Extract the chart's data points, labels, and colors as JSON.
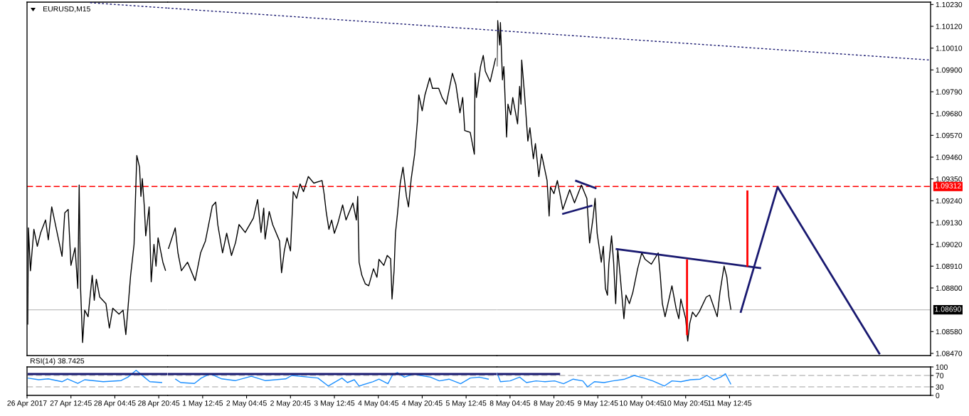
{
  "chart_data": [
    {
      "type": "line",
      "title": "EURUSD,M15",
      "series": [
        {
          "color": "#000000",
          "x": [
            "2017-04-26T21:00",
            "2017-04-26T21:15",
            "2017-04-26T22:00",
            "2017-04-26T23:15",
            "2017-04-27T00:30",
            "2017-04-27T01:45",
            "2017-04-27T03:30",
            "2017-04-27T04:30",
            "2017-04-27T05:45",
            "2017-04-27T07:15",
            "2017-04-27T09:30",
            "2017-04-27T10:30",
            "2017-04-27T11:45",
            "2017-04-27T12:45",
            "2017-04-27T14:15",
            "2017-04-27T15:15",
            "2017-04-27T15:45",
            "2017-04-27T16:15",
            "2017-04-27T17:00",
            "2017-04-27T17:45",
            "2017-04-27T19:00",
            "2017-04-27T20:30",
            "2017-04-27T21:15",
            "2017-04-27T22:00",
            "2017-04-27T23:15",
            "2017-04-28T01:30",
            "2017-04-28T02:45",
            "2017-04-28T04:00",
            "2017-04-28T06:15",
            "2017-04-28T07:45",
            "2017-04-28T08:45",
            "2017-04-28T10:30",
            "2017-04-28T11:45",
            "2017-04-28T12:45",
            "2017-04-28T13:45",
            "2017-04-28T14:15",
            "2017-04-28T14:45",
            "2017-04-28T15:30",
            "2017-04-28T16:00",
            "2017-04-28T17:15",
            "2017-04-28T18:00",
            "2017-04-28T19:00",
            "2017-04-28T19:45",
            "2017-04-28T20:30",
            "2017-04-28T22:15",
            "2017-04-28T23:15"
          ],
          "values": [
            1.08615,
            1.09103,
            1.08887,
            1.09096,
            1.0901,
            1.0908,
            1.09143,
            1.09043,
            1.09209,
            1.0911,
            1.0896,
            1.09179,
            1.09196,
            1.08914,
            1.09003,
            1.08798,
            1.09319,
            1.08801,
            1.08525,
            1.08688,
            1.08655,
            1.08864,
            1.08738,
            1.08844,
            1.08754,
            1.08721,
            1.08598,
            1.08698,
            1.08668,
            1.08688,
            1.08565,
            1.08864,
            1.0902,
            1.09468,
            1.09409,
            1.09262,
            1.09352,
            1.09209,
            1.09063,
            1.09209,
            1.08831,
            1.0902,
            1.0891,
            1.09053,
            1.0893,
            1.08887
          ]
        },
        {
          "color": "#191970",
          "line_style": "dotted",
          "x": [
            "2017-04-27T19:45",
            "2017-04-29T00:00"
          ],
          "values": [
            1.10239,
            1.10212
          ]
        }
      ],
      "xlim": [
        "2017-04-26T20:45",
        "2017-04-29T00:00"
      ],
      "ylim": [
        1.08459,
        1.10242
      ],
      "ref_lines": [
        {
          "axis": "y",
          "value": 1.09312,
          "color": "#ff0000",
          "line_style": "dashed"
        },
        {
          "axis": "y",
          "value": 1.0869,
          "color": "#c0c0c0",
          "line_style": "solid"
        }
      ],
      "tick_labels": false
    },
    {
      "type": "line",
      "series": [
        {
          "color": "#000000",
          "x": [
            "2017-05-01T00:15",
            "2017-05-01T02:45",
            "2017-05-01T03:45",
            "2017-05-01T05:00",
            "2017-05-01T07:15",
            "2017-05-01T10:00",
            "2017-05-01T12:00",
            "2017-05-01T13:45",
            "2017-05-01T16:15",
            "2017-05-01T17:30",
            "2017-05-01T18:15",
            "2017-05-01T20:00",
            "2017-05-01T21:30",
            "2017-05-01T23:15",
            "2017-05-02T00:45",
            "2017-05-02T02:00",
            "2017-05-02T04:15",
            "2017-05-02T07:15",
            "2017-05-02T08:45",
            "2017-05-02T10:00",
            "2017-05-02T11:00",
            "2017-05-02T11:30",
            "2017-05-02T13:00",
            "2017-05-02T14:15",
            "2017-05-02T16:45",
            "2017-05-02T17:30",
            "2017-05-02T18:30",
            "2017-05-02T19:30",
            "2017-05-02T20:45",
            "2017-05-02T21:45",
            "2017-05-02T23:00",
            "2017-05-03T00:15",
            "2017-05-03T01:30",
            "2017-05-03T03:15",
            "2017-05-03T05:15",
            "2017-05-03T08:15",
            "2017-05-03T09:00",
            "2017-05-03T09:45",
            "2017-05-03T10:45",
            "2017-05-03T11:45",
            "2017-05-03T12:45",
            "2017-05-03T14:00",
            "2017-05-03T15:45",
            "2017-05-03T17:00",
            "2017-05-03T19:30",
            "2017-05-03T20:45",
            "2017-05-03T21:15",
            "2017-05-03T21:45",
            "2017-05-03T22:45",
            "2017-05-04T00:00",
            "2017-05-04T01:15",
            "2017-05-04T03:00",
            "2017-05-04T04:15",
            "2017-05-04T05:00",
            "2017-05-04T06:45",
            "2017-05-04T08:00",
            "2017-05-04T09:15",
            "2017-05-04T09:45",
            "2017-05-04T10:30",
            "2017-05-04T11:00",
            "2017-05-04T11:45",
            "2017-05-04T12:45",
            "2017-05-04T13:45",
            "2017-05-04T15:00",
            "2017-05-04T15:45",
            "2017-05-04T16:45",
            "2017-05-04T18:00",
            "2017-05-04T19:00",
            "2017-05-04T19:30",
            "2017-05-04T20:45",
            "2017-05-04T21:45",
            "2017-05-04T23:30",
            "2017-05-05T00:30",
            "2017-05-05T02:45",
            "2017-05-05T04:00",
            "2017-05-05T05:30",
            "2017-05-05T07:45",
            "2017-05-05T09:00",
            "2017-05-05T10:30",
            "2017-05-05T11:30",
            "2017-05-05T12:15",
            "2017-05-05T14:15",
            "2017-05-05T15:45",
            "2017-05-05T16:00",
            "2017-05-05T16:30",
            "2017-05-05T18:00",
            "2017-05-05T19:00",
            "2017-05-05T19:45",
            "2017-05-05T21:30",
            "2017-05-05T23:30"
          ],
          "values": [
            1.08997,
            1.09103,
            1.08977,
            1.08887,
            1.0893,
            1.08837,
            1.08977,
            1.09037,
            1.09213,
            1.09233,
            1.0912,
            1.08977,
            1.09076,
            1.08964,
            1.0903,
            1.0912,
            1.0908,
            1.09153,
            1.09246,
            1.0908,
            1.09203,
            1.09047,
            1.09186,
            1.0912,
            1.09037,
            1.08877,
            1.08987,
            1.09053,
            1.08987,
            1.09286,
            1.09252,
            1.09325,
            1.09286,
            1.09362,
            1.09329,
            1.09342,
            1.09276,
            1.09186,
            1.09096,
            1.09143,
            1.09076,
            1.09126,
            1.09219,
            1.09143,
            1.09229,
            1.09143,
            1.09262,
            1.0893,
            1.08864,
            1.08821,
            1.08811,
            1.08897,
            1.08854,
            1.08944,
            1.08914,
            1.08964,
            1.08947,
            1.08744,
            1.08887,
            1.09076,
            1.09176,
            1.09329,
            1.09409,
            1.09262,
            1.09209,
            1.09352,
            1.09475,
            1.09641,
            1.09774,
            1.09694,
            1.09774,
            1.0986,
            1.09807,
            1.09807,
            1.09761,
            1.09727,
            1.09883,
            1.09827,
            1.09684,
            1.09761,
            1.09594,
            1.09585,
            1.09475,
            1.09883,
            1.09761,
            1.09917,
            1.09973,
            1.09893,
            1.0984,
            1.0996
          ]
        },
        {
          "color": "#191970",
          "line_style": "dotted",
          "x": [
            "2017-05-01T00:00",
            "2017-05-06T00:00"
          ],
          "values": [
            1.10212,
            1.10099
          ]
        }
      ],
      "xlim": [
        "2017-05-01T00:00",
        "2017-05-06T00:00"
      ],
      "ylim": [
        1.08459,
        1.10242
      ],
      "ref_lines": [
        {
          "axis": "y",
          "value": 1.09312,
          "color": "#ff0000",
          "line_style": "dashed"
        },
        {
          "axis": "y",
          "value": 1.0869,
          "color": "#c0c0c0",
          "line_style": "solid"
        }
      ],
      "tick_labels": false
    },
    {
      "type": "line",
      "series": [
        {
          "color": "#000000",
          "x": [
            "2017-05-08T00:00",
            "2017-05-08T00:15",
            "2017-05-08T01:00",
            "2017-05-08T01:15",
            "2017-05-08T02:00",
            "2017-05-08T02:30",
            "2017-05-08T03:30",
            "2017-05-08T04:00",
            "2017-05-08T05:00",
            "2017-05-08T05:45",
            "2017-05-08T07:30",
            "2017-05-08T08:15",
            "2017-05-08T08:45",
            "2017-05-08T09:00",
            "2017-05-08T10:00",
            "2017-05-08T11:15",
            "2017-05-08T12:00",
            "2017-05-08T13:15",
            "2017-05-08T14:00",
            "2017-05-08T15:15",
            "2017-05-08T16:15",
            "2017-05-08T18:15",
            "2017-05-08T19:00",
            "2017-05-08T19:30",
            "2017-05-08T20:45",
            "2017-05-08T22:00",
            "2017-05-09T00:00",
            "2017-05-09T02:30",
            "2017-05-09T04:15",
            "2017-05-09T06:45",
            "2017-05-09T08:45",
            "2017-05-09T09:45",
            "2017-05-09T11:00",
            "2017-05-09T11:45",
            "2017-05-09T12:30",
            "2017-05-09T14:00",
            "2017-05-09T14:45",
            "2017-05-09T15:30",
            "2017-05-09T16:15",
            "2017-05-09T16:45",
            "2017-05-09T17:45",
            "2017-05-09T18:30",
            "2017-05-09T19:15",
            "2017-05-09T20:00",
            "2017-05-09T21:00",
            "2017-05-09T22:15",
            "2017-05-09T23:00",
            "2017-05-10T00:15",
            "2017-05-10T01:30",
            "2017-05-10T03:15",
            "2017-05-10T04:45",
            "2017-05-10T06:00",
            "2017-05-10T08:15",
            "2017-05-10T10:45",
            "2017-05-10T11:30",
            "2017-05-10T12:15",
            "2017-05-10T13:15",
            "2017-05-10T15:45",
            "2017-05-10T17:15",
            "2017-05-10T18:15",
            "2017-05-10T19:00",
            "2017-05-10T20:45",
            "2017-05-10T21:30",
            "2017-05-10T22:15",
            "2017-05-10T23:15",
            "2017-05-11T00:30",
            "2017-05-11T01:45",
            "2017-05-11T04:15",
            "2017-05-11T05:30",
            "2017-05-11T08:15",
            "2017-05-11T09:15",
            "2017-05-11T10:45",
            "2017-05-11T11:45",
            "2017-05-11T12:30",
            "2017-05-11T13:15"
          ],
          "values": [
            1.09917,
            1.10149,
            1.10026,
            1.10139,
            1.0985,
            1.09917,
            1.09561,
            1.09727,
            1.09674,
            1.09761,
            1.09628,
            1.09817,
            1.09727,
            1.0995,
            1.09784,
            1.09541,
            1.09608,
            1.09452,
            1.09528,
            1.09362,
            1.09475,
            1.09342,
            1.09163,
            1.09309,
            1.09276,
            1.09342,
            1.09196,
            1.09296,
            1.09229,
            1.09319,
            1.09252,
            1.09027,
            1.09153,
            1.09252,
            1.09076,
            1.0893,
            1.0901,
            1.08798,
            1.08764,
            1.0892,
            1.09063,
            1.0893,
            1.08721,
            1.08997,
            1.08844,
            1.08645,
            1.08764,
            1.08721,
            1.08778,
            1.08897,
            1.08977,
            1.08944,
            1.0892,
            1.08977,
            1.08864,
            1.08721,
            1.08655,
            1.08811,
            1.08698,
            1.08645,
            1.08744,
            1.08645,
            1.08532,
            1.08622,
            1.08678,
            1.08655,
            1.08681,
            1.08754,
            1.08764,
            1.08655,
            1.08778,
            1.0891,
            1.08854,
            1.08754,
            1.0869
          ]
        },
        {
          "color": "#191970",
          "line_style": "dotted",
          "x": [
            "2017-05-08T00:00",
            "2017-05-14T13:45"
          ],
          "values": [
            1.10099,
            1.0995
          ]
        },
        {
          "color": "#191970",
          "x": [
            "2017-05-09T04:30",
            "2017-05-09T12:15"
          ],
          "values": [
            1.09342,
            1.09302
          ]
        },
        {
          "color": "#191970",
          "x": [
            "2017-05-08T23:45",
            "2017-05-09T10:45"
          ],
          "values": [
            1.09173,
            1.09216
          ]
        },
        {
          "color": "#191970",
          "x": [
            "2017-05-09T19:15",
            "2017-05-12T00:15"
          ],
          "values": [
            1.08997,
            1.089
          ]
        },
        {
          "color": "#191970",
          "x": [
            "2017-05-11T16:45",
            "2017-05-12T06:15",
            "2017-05-13T19:30"
          ],
          "values": [
            1.08675,
            1.09309,
            1.08465
          ]
        },
        {
          "color": "#ff0000",
          "x": [
            "2017-05-10T21:15",
            "2017-05-10T21:15"
          ],
          "values": [
            1.08944,
            1.08562
          ]
        },
        {
          "color": "#ff0000",
          "x": [
            "2017-05-11T19:15",
            "2017-05-11T19:15"
          ],
          "values": [
            1.09292,
            1.08907
          ]
        }
      ],
      "xlim": [
        "2017-05-08T00:00",
        "2017-05-14T14:00"
      ],
      "ylim": [
        1.08459,
        1.10242
      ],
      "yticks": [
        {
          "value": 1.0847,
          "label": "1.08470"
        },
        {
          "value": 1.0858,
          "label": "1.08580"
        },
        {
          "value": 1.088,
          "label": "1.08800"
        },
        {
          "value": 1.0891,
          "label": "1.08910"
        },
        {
          "value": 1.0902,
          "label": "1.09020"
        },
        {
          "value": 1.0913,
          "label": "1.09130"
        },
        {
          "value": 1.0924,
          "label": "1.09240"
        },
        {
          "value": 1.0935,
          "label": "1.09350"
        },
        {
          "value": 1.0946,
          "label": "1.09460"
        },
        {
          "value": 1.0957,
          "label": "1.09570"
        },
        {
          "value": 1.0968,
          "label": "1.09680"
        },
        {
          "value": 1.0979,
          "label": "1.09790"
        },
        {
          "value": 1.099,
          "label": "1.09900"
        },
        {
          "value": 1.1001,
          "label": "1.10010"
        },
        {
          "value": 1.1012,
          "label": "1.10120"
        },
        {
          "value": 1.1023,
          "label": "1.10230"
        }
      ],
      "ref_lines": [
        {
          "axis": "y",
          "value": 1.09312,
          "label": "1.09312",
          "color": "#ff0000",
          "line_style": "dashed"
        },
        {
          "axis": "y",
          "value": 1.0869,
          "label": "1.08690",
          "color": "#c0c0c0",
          "line_style": "solid"
        }
      ],
      "tick_labels": "y"
    },
    {
      "type": "line",
      "title": "RSI(14) 38.7425",
      "series": [
        {
          "color": "#1e90ff",
          "x": [
            "2017-04-26T21:00",
            "2017-04-27T01:00",
            "2017-04-27T04:30",
            "2017-04-27T09:30",
            "2017-04-27T11:30",
            "2017-04-27T15:15",
            "2017-04-27T17:45",
            "2017-04-28T00:30",
            "2017-04-28T07:00",
            "2017-04-28T09:30",
            "2017-04-28T12:30",
            "2017-04-28T15:30",
            "2017-04-28T17:30",
            "2017-04-28T22:00"
          ],
          "values": [
            61,
            55,
            58,
            48,
            58,
            42,
            55,
            48,
            52,
            64,
            88,
            64,
            48,
            45
          ]
        },
        {
          "color": "#191970",
          "x": [
            "2017-04-26T21:00",
            "2017-04-29T00:00"
          ],
          "values": [
            75,
            75
          ]
        }
      ],
      "xlim": [
        "2017-04-26T20:45",
        "2017-04-29T00:00"
      ],
      "xticks": [
        {
          "value": "2017-04-26T20:45",
          "label": "26 Apr 2017"
        },
        {
          "value": "2017-04-27T12:45",
          "label": "27 Apr 12:45"
        },
        {
          "value": "2017-04-28T04:45",
          "label": "28 Apr 04:45"
        },
        {
          "value": "2017-04-28T20:45",
          "label": "28 Apr 20:45"
        }
      ],
      "ylim": [
        0,
        100
      ],
      "ref_lines": [
        {
          "axis": "y",
          "value": 70,
          "color": "#c0c0c0",
          "line_style": "dashed"
        },
        {
          "axis": "y",
          "value": 30,
          "color": "#c0c0c0",
          "line_style": "dashed"
        }
      ],
      "tick_labels": "x"
    },
    {
      "type": "line",
      "series": [
        {
          "color": "#1e90ff",
          "x": [
            "2017-05-01T02:45",
            "2017-05-01T04:45",
            "2017-05-01T09:45",
            "2017-05-01T12:15",
            "2017-05-01T15:30",
            "2017-05-01T19:45",
            "2017-05-02T00:45",
            "2017-05-02T06:30",
            "2017-05-02T11:30",
            "2017-05-02T19:00",
            "2017-05-02T21:15",
            "2017-05-03T03:30",
            "2017-05-03T06:45",
            "2017-05-03T10:30",
            "2017-05-03T15:30",
            "2017-05-03T17:30",
            "2017-05-03T20:00",
            "2017-05-03T21:45",
            "2017-05-04T02:45",
            "2017-05-04T05:00",
            "2017-05-04T08:15",
            "2017-05-04T10:00",
            "2017-05-04T11:45",
            "2017-05-04T14:15",
            "2017-05-04T17:45",
            "2017-05-04T20:15",
            "2017-05-04T23:45",
            "2017-05-05T03:00",
            "2017-05-05T06:30",
            "2017-05-05T10:45",
            "2017-05-05T14:15",
            "2017-05-05T17:30",
            "2017-05-05T21:00"
          ],
          "values": [
            58,
            45,
            42,
            61,
            76,
            58,
            52,
            67,
            52,
            58,
            70,
            64,
            61,
            33,
            61,
            45,
            55,
            33,
            48,
            57,
            41,
            73,
            80,
            64,
            76,
            70,
            64,
            51,
            57,
            41,
            61,
            64,
            57
          ]
        },
        {
          "color": "#191970",
          "x": [
            "2017-05-01T00:00",
            "2017-05-06T00:00"
          ],
          "values": [
            75,
            75
          ]
        }
      ],
      "xlim": [
        "2017-05-01T00:00",
        "2017-05-06T00:00"
      ],
      "xticks": [
        {
          "value": "2017-05-01T12:45",
          "label": "1 May 12:45"
        },
        {
          "value": "2017-05-02T04:45",
          "label": "2 May 04:45"
        },
        {
          "value": "2017-05-02T20:45",
          "label": "2 May 20:45"
        },
        {
          "value": "2017-05-03T12:45",
          "label": "3 May 12:45"
        },
        {
          "value": "2017-05-04T04:45",
          "label": "4 May 04:45"
        },
        {
          "value": "2017-05-04T20:45",
          "label": "4 May 20:45"
        },
        {
          "value": "2017-05-05T12:45",
          "label": "5 May 12:45"
        }
      ],
      "ylim": [
        0,
        100
      ],
      "ref_lines": [
        {
          "axis": "y",
          "value": 70,
          "color": "#c0c0c0",
          "line_style": "dashed"
        },
        {
          "axis": "y",
          "value": 30,
          "color": "#c0c0c0",
          "line_style": "dashed"
        }
      ],
      "tick_labels": "x"
    },
    {
      "type": "line",
      "series": [
        {
          "color": "#1e90ff",
          "x": [
            "2017-05-08T00:00",
            "2017-05-08T01:15",
            "2017-05-08T04:45",
            "2017-05-08T08:15",
            "2017-05-08T10:45",
            "2017-05-08T14:15",
            "2017-05-08T17:30",
            "2017-05-08T21:00",
            "2017-05-09T00:15",
            "2017-05-09T03:45",
            "2017-05-09T07:15",
            "2017-05-09T09:00",
            "2017-05-09T11:30",
            "2017-05-09T15:00",
            "2017-05-09T18:15",
            "2017-05-09T22:30",
            "2017-05-10T02:00",
            "2017-05-10T05:30",
            "2017-05-10T08:45",
            "2017-05-10T13:00",
            "2017-05-10T15:45",
            "2017-05-10T19:00",
            "2017-05-10T22:30",
            "2017-05-11T02:00",
            "2017-05-11T04:30",
            "2017-05-11T07:00",
            "2017-05-11T09:30",
            "2017-05-11T11:15",
            "2017-05-11T13:15"
          ],
          "values": [
            80,
            48,
            51,
            64,
            45,
            51,
            48,
            51,
            41,
            57,
            51,
            30,
            48,
            45,
            51,
            57,
            70,
            61,
            51,
            33,
            51,
            48,
            55,
            57,
            70,
            55,
            64,
            76,
            38.7425
          ]
        },
        {
          "color": "#191970",
          "x": [
            "2017-05-08T00:00",
            "2017-05-08T23:00"
          ],
          "values": [
            75,
            75
          ]
        }
      ],
      "xlim": [
        "2017-05-08T00:00",
        "2017-05-14T14:00"
      ],
      "xticks": [
        {
          "value": "2017-05-08T04:45",
          "label": "8 May 04:45"
        },
        {
          "value": "2017-05-08T20:45",
          "label": "8 May 20:45"
        },
        {
          "value": "2017-05-09T12:45",
          "label": "9 May 12:45"
        },
        {
          "value": "2017-05-10T04:45",
          "label": "10 May 04:45"
        },
        {
          "value": "2017-05-10T20:45",
          "label": "10 May 20:45"
        },
        {
          "value": "2017-05-11T12:45",
          "label": "11 May 12:45"
        }
      ],
      "ylim": [
        0,
        100
      ],
      "yticks": [
        0,
        30,
        70,
        100
      ],
      "ref_lines": [
        {
          "axis": "y",
          "value": 70,
          "color": "#c0c0c0",
          "line_style": "dashed"
        },
        {
          "axis": "y",
          "value": 30,
          "color": "#c0c0c0",
          "line_style": "dashed"
        }
      ]
    }
  ]
}
